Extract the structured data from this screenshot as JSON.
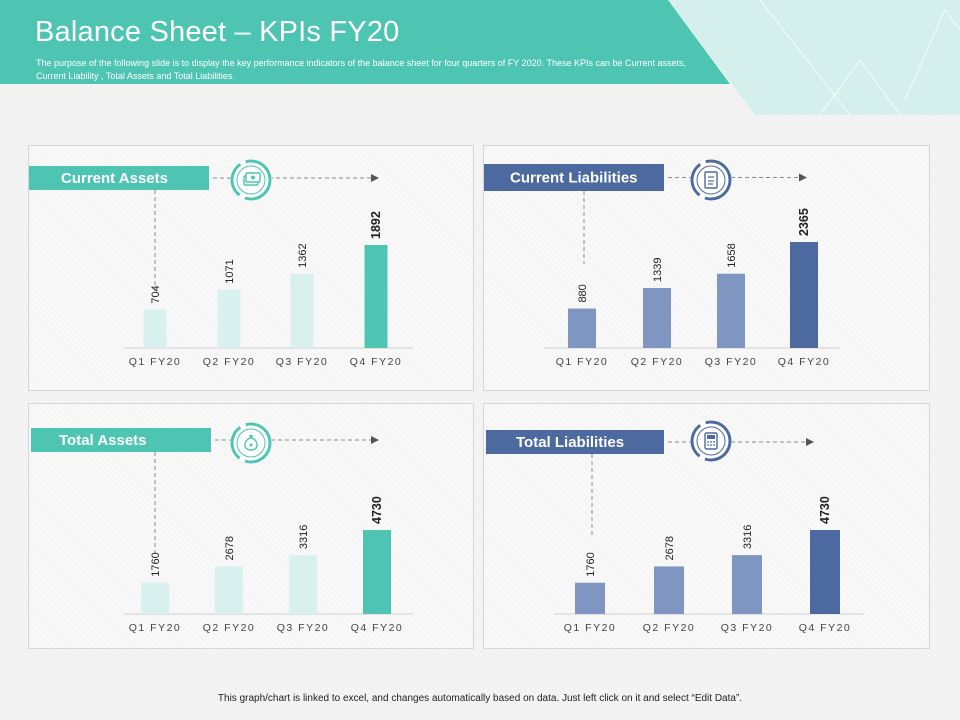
{
  "header": {
    "title": "Balance Sheet – KPIs FY20",
    "subtitle": "The purpose of the following slide is to display the key performance indicators of the balance sheet for four quarters of FY 2020. These KPIs can be Current assets, Current Liability , Total Assets and Total Liabilities."
  },
  "footer": {
    "note": "This graph/chart is linked to excel, and changes automatically based on data. Just left click on it and select “Edit Data”."
  },
  "colors": {
    "teal": "#4dc5b2",
    "teal_light": "#d9f1ee",
    "navy": "#4d6aa0",
    "navy_light": "#7f96c2",
    "header_light": "#d5efec"
  },
  "chart_data": [
    {
      "type": "bar",
      "title": "Current Assets",
      "icon": "money-stack-icon",
      "categories": [
        "Q1 FY20",
        "Q2 FY20",
        "Q3 FY20",
        "Q4 FY20"
      ],
      "values": [
        704,
        1071,
        1362,
        1892
      ],
      "value_labels": [
        "704",
        "1071",
        "1362",
        "1892"
      ],
      "ylim": [
        0,
        1892
      ],
      "theme": "teal",
      "highlight_index": 3
    },
    {
      "type": "bar",
      "title": "Current Liabilities",
      "icon": "document-icon",
      "categories": [
        "Q1 FY20",
        "Q2 FY20",
        "Q3 FY20",
        "Q4 FY20"
      ],
      "values": [
        880,
        1339,
        1658,
        2365
      ],
      "value_labels": [
        "880",
        "1339",
        "1658",
        "2365"
      ],
      "ylim": [
        0,
        2365
      ],
      "theme": "navy",
      "highlight_index": 3
    },
    {
      "type": "bar",
      "title": "Total Assets",
      "icon": "money-bag-icon",
      "categories": [
        "Q1 FY20",
        "Q2 FY20",
        "Q3 FY20",
        "Q4 FY20"
      ],
      "values": [
        1760,
        2678,
        3316,
        4730
      ],
      "value_labels": [
        "1760",
        "2678",
        "3316",
        "4730"
      ],
      "ylim": [
        0,
        4730
      ],
      "theme": "teal",
      "highlight_index": 3
    },
    {
      "type": "bar",
      "title": "Total Liabilities",
      "icon": "calculator-icon",
      "categories": [
        "Q1 FY20",
        "Q2 FY20",
        "Q3 FY20",
        "Q4 FY20"
      ],
      "values": [
        1760,
        2678,
        3316,
        4730
      ],
      "value_labels": [
        "1760",
        "2678",
        "3316",
        "4730"
      ],
      "ylim": [
        0,
        4730
      ],
      "theme": "navy",
      "highlight_index": 3
    }
  ]
}
